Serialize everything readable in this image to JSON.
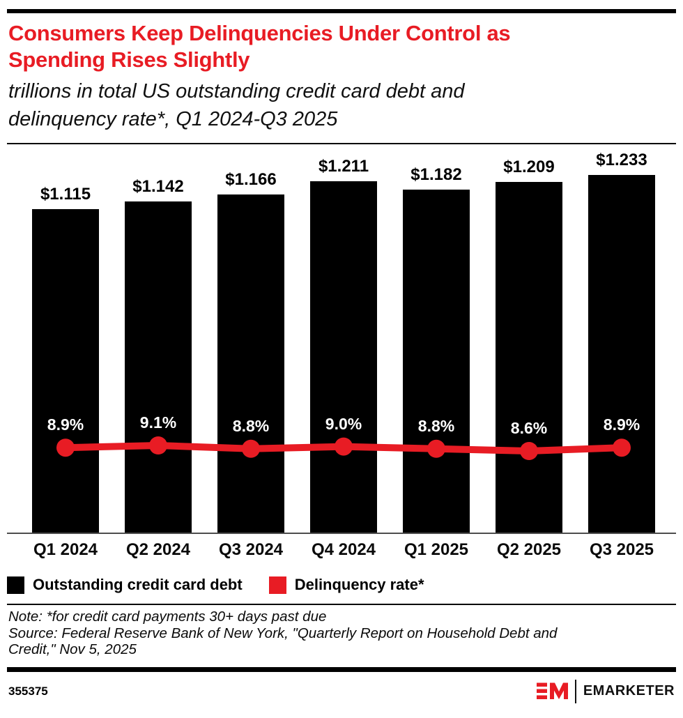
{
  "header": {
    "title": "Consumers Keep Delinquencies Under Control as\nSpending Rises Slightly",
    "subtitle": "trillions in total US outstanding credit card debt and\ndelinquency rate*, Q1 2024-Q3 2025"
  },
  "chart_data": {
    "type": "bar",
    "title": "Consumers Keep Delinquencies Under Control as Spending Rises Slightly",
    "subtitle": "trillions in total US outstanding credit card debt and delinquency rate*, Q1 2024-Q3 2025",
    "categories": [
      "Q1 2024",
      "Q2 2024",
      "Q3 2024",
      "Q4 2024",
      "Q1 2025",
      "Q2 2025",
      "Q3 2025"
    ],
    "series": [
      {
        "name": "Outstanding credit card debt",
        "type": "bar",
        "color": "#000000",
        "unit": "trillions of US dollars",
        "values": [
          1.115,
          1.142,
          1.166,
          1.211,
          1.182,
          1.209,
          1.233
        ],
        "labels": [
          "$1.115",
          "$1.142",
          "$1.166",
          "$1.211",
          "$1.182",
          "$1.209",
          "$1.233"
        ]
      },
      {
        "name": "Delinquency rate*",
        "type": "line",
        "color": "#e81c24",
        "unit": "percent",
        "values": [
          8.9,
          9.1,
          8.8,
          9.0,
          8.8,
          8.6,
          8.9
        ],
        "labels": [
          "8.9%",
          "9.1%",
          "8.8%",
          "9.0%",
          "8.8%",
          "8.6%",
          "8.9%"
        ]
      }
    ],
    "legend_position": "bottom",
    "grid": false
  },
  "legend": {
    "items": [
      {
        "label": "Outstanding credit card debt",
        "color": "#000000"
      },
      {
        "label": "Delinquency rate*",
        "color": "#e81c24"
      }
    ]
  },
  "footnote": {
    "note": "Note: *for credit card payments 30+ days past due",
    "source": "Source: Federal Reserve Bank of New York, \"Quarterly Report on Household Debt and\nCredit,\" Nov 5, 2025"
  },
  "footer": {
    "chart_id": "355375",
    "brand": "EMARKETER"
  }
}
